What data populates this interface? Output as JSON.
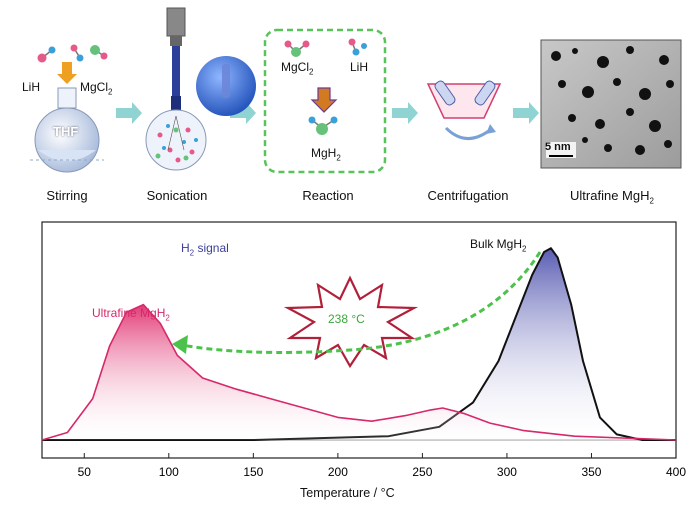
{
  "steps": [
    {
      "label": "Stirring"
    },
    {
      "label": "Sonication"
    },
    {
      "label": "Reaction"
    },
    {
      "label": "Centrifugation"
    },
    {
      "label": "Ultrafine MgH",
      "sub": "2"
    }
  ],
  "stirring": {
    "reagent1": "LiH",
    "reagent2": "MgCl",
    "reagent2_sub": "2",
    "solvent": "THF"
  },
  "reaction": {
    "reactant1": "MgCl",
    "reactant1_sub": "2",
    "reactant2": "LiH",
    "product": "MgH",
    "product_sub": "2"
  },
  "tem": {
    "scale_label": "5 nm"
  },
  "plot": {
    "h2_signal": "H",
    "h2_sub": "2",
    "h2_suffix": " signal",
    "bulk_label": "Bulk MgH",
    "bulk_sub": "2",
    "ultrafine_label": "Ultrafine MgH",
    "ultrafine_sub": "2",
    "shift_label": "238 °C",
    "xlabel": "Temperature / °C"
  },
  "colors": {
    "arrow_teal": "#7fd0d0",
    "dashed_green": "#4cc24c",
    "ultrafine": "#d6286a",
    "bulk_fill": "#3b3fa5",
    "starburst": "#b0203a",
    "reaction_box": "#5ac25a"
  },
  "chart_data": {
    "type": "line",
    "xlabel": "Temperature / °C",
    "ylabel": "",
    "xlim": [
      25,
      400
    ],
    "x_ticks": [
      50,
      100,
      150,
      200,
      250,
      300,
      350,
      400
    ],
    "series": [
      {
        "name": "Ultrafine MgH2",
        "x": [
          25,
          40,
          55,
          65,
          75,
          85,
          95,
          105,
          120,
          140,
          160,
          180,
          200,
          220,
          240,
          255,
          262,
          275,
          290,
          310,
          340,
          400
        ],
        "y": [
          0.0,
          0.04,
          0.22,
          0.5,
          0.68,
          0.72,
          0.62,
          0.45,
          0.33,
          0.27,
          0.22,
          0.17,
          0.12,
          0.1,
          0.13,
          0.16,
          0.17,
          0.14,
          0.09,
          0.05,
          0.02,
          0.0
        ]
      },
      {
        "name": "Bulk MgH2",
        "x": [
          25,
          150,
          230,
          260,
          280,
          295,
          305,
          315,
          322,
          326,
          330,
          338,
          345,
          355,
          365,
          380,
          400
        ],
        "y": [
          0.0,
          0.0,
          0.02,
          0.07,
          0.2,
          0.42,
          0.65,
          0.88,
          1.0,
          1.02,
          0.97,
          0.72,
          0.42,
          0.12,
          0.03,
          0.0,
          0.0
        ]
      }
    ],
    "annotations": [
      "H2 signal",
      "Bulk MgH2",
      "Ultrafine MgH2",
      "238 °C"
    ]
  }
}
